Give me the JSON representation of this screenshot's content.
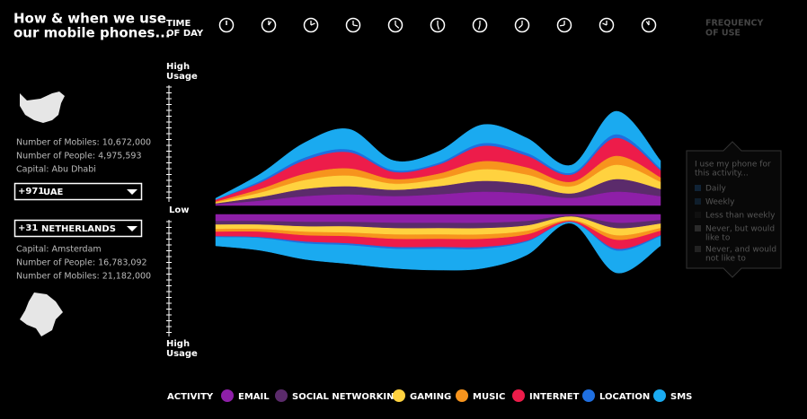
{
  "title": [
    "How & when we use",
    "our mobile phones..."
  ],
  "time_of_day_label": [
    "TIME",
    "OF DAY"
  ],
  "frequency_label": [
    "FREQUENCY",
    "OF USE"
  ],
  "axis_labels": {
    "high_top": [
      "High",
      "Usage"
    ],
    "low": "Low",
    "high_bottom": [
      "High",
      "Usage"
    ]
  },
  "countries": [
    {
      "code": "+971",
      "name": "UAE",
      "stats": [
        "Number of Mobiles: 10,672,000",
        "Number of People: 4,975,593",
        "Capital: Abu Dhabi"
      ]
    },
    {
      "code": "+31",
      "name": "NETHERLANDS",
      "stats": [
        "Capital: Amsterdam",
        "Number of People: 16,783,092",
        "Number of Mobiles: 21,182,000"
      ]
    }
  ],
  "frequency_panel": {
    "prompt": [
      "I use my phone for",
      "this activity..."
    ],
    "options": [
      [
        "Daily"
      ],
      [
        "Weekly"
      ],
      [
        "Less than weekly"
      ],
      [
        "Never, but would",
        "like to"
      ],
      [
        "Never, and would",
        "not like to"
      ]
    ]
  },
  "chart_data": [
    {
      "type": "streamgraph",
      "legend_title": "ACTIVITY",
      "series": [
        {
          "name": "EMAIL",
          "color": "#8e1fa8",
          "values": [
            1,
            5,
            10,
            12,
            10,
            12,
            15,
            13,
            8,
            15,
            10
          ]
        },
        {
          "name": "SOCIAL NETWORKING",
          "color": "#5b2b6b",
          "values": [
            1,
            4,
            8,
            9,
            7,
            9,
            12,
            10,
            5,
            14,
            8
          ]
        },
        {
          "name": "GAMING",
          "color": "#ffd23f",
          "values": [
            1,
            5,
            10,
            12,
            7,
            8,
            13,
            11,
            8,
            16,
            8
          ]
        },
        {
          "name": "MUSIC",
          "color": "#f7941d",
          "values": [
            1,
            4,
            7,
            8,
            5,
            6,
            9,
            8,
            5,
            10,
            5
          ]
        },
        {
          "name": "INTERNET",
          "color": "#ed1c4a",
          "values": [
            2,
            7,
            15,
            18,
            8,
            10,
            17,
            13,
            8,
            20,
            8
          ]
        },
        {
          "name": "LOCATION",
          "color": "#1f6fe0",
          "values": [
            0,
            2,
            3,
            3,
            2,
            2,
            3,
            3,
            2,
            4,
            2
          ]
        },
        {
          "name": "SMS",
          "color": "#1aaaf0",
          "values": [
            2,
            8,
            17,
            23,
            11,
            13,
            21,
            17,
            9,
            26,
            9
          ]
        }
      ]
    },
    {
      "type": "streamgraph",
      "series": [
        {
          "color": "#8e1fa8",
          "values": [
            7,
            7,
            8,
            8,
            9,
            9,
            9,
            7,
            1,
            9,
            6
          ]
        },
        {
          "color": "#5b2b6b",
          "values": [
            4,
            4,
            5,
            5,
            6,
            6,
            6,
            5,
            1,
            6,
            4
          ]
        },
        {
          "color": "#ffd23f",
          "values": [
            5,
            5,
            6,
            7,
            7,
            7,
            7,
            6,
            4,
            8,
            5
          ]
        },
        {
          "color": "#f7941d",
          "values": [
            3,
            3,
            4,
            4,
            5,
            5,
            5,
            4,
            1,
            5,
            3
          ]
        },
        {
          "color": "#ed1c4a",
          "values": [
            5,
            6,
            7,
            8,
            9,
            9,
            9,
            7,
            1,
            10,
            5
          ]
        },
        {
          "color": "#1f6fe0",
          "values": [
            1,
            1,
            2,
            2,
            2,
            2,
            2,
            1,
            0,
            2,
            1
          ]
        },
        {
          "color": "#1aaaf0",
          "values": [
            10,
            14,
            18,
            21,
            22,
            24,
            22,
            15,
            2,
            25,
            11
          ]
        }
      ]
    }
  ]
}
